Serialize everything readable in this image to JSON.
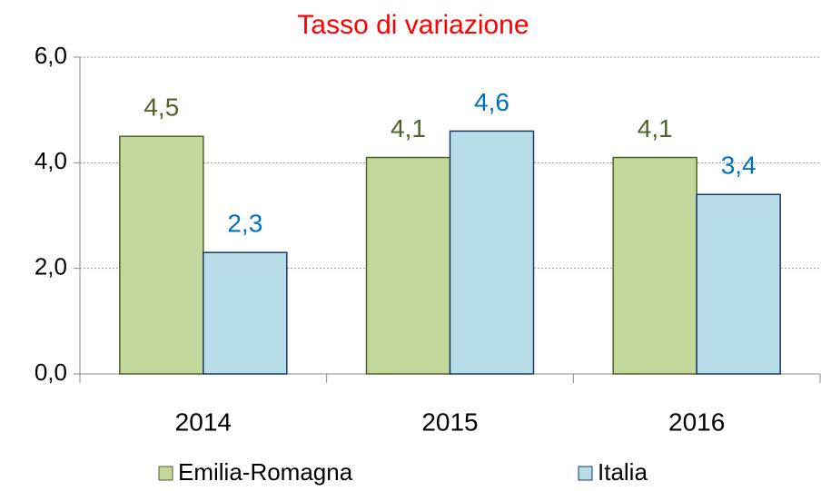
{
  "chart_data": {
    "type": "bar",
    "title": "Tasso di variazione",
    "categories": [
      "2014",
      "2015",
      "2016"
    ],
    "series": [
      {
        "name": "Emilia-Romagna",
        "color": "#c3d69b",
        "values": [
          4.5,
          4.1,
          4.1
        ],
        "value_labels": [
          "4,5",
          "4,1",
          "4,1"
        ]
      },
      {
        "name": "Italia",
        "color": "#b7dde8",
        "values": [
          2.3,
          4.6,
          3.4
        ],
        "value_labels": [
          "2,3",
          "4,6",
          "3,4"
        ]
      }
    ],
    "ylim": [
      0,
      6
    ],
    "yticks": [
      {
        "value": 0,
        "label": "0,0"
      },
      {
        "value": 2,
        "label": "2,0"
      },
      {
        "value": 4,
        "label": "4,0"
      },
      {
        "value": 6,
        "label": "6,0"
      }
    ],
    "grid": true,
    "legend": "bottom"
  }
}
